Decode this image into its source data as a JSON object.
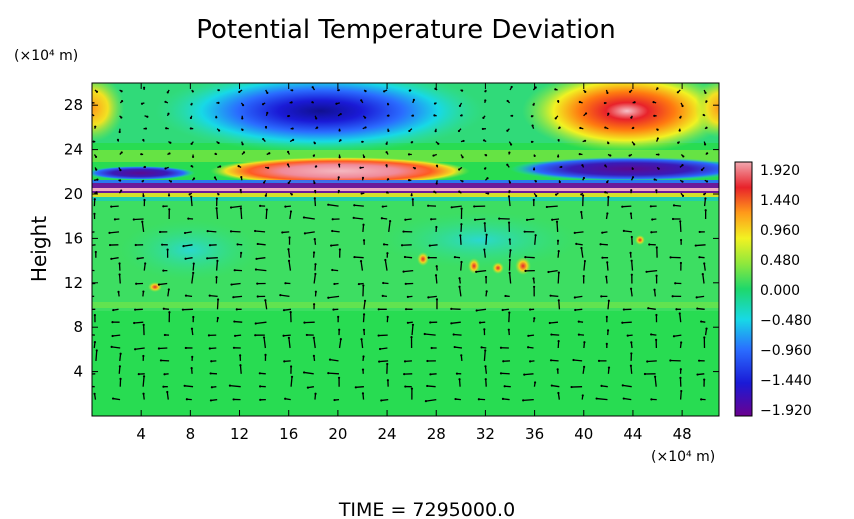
{
  "chart_data": {
    "type": "heatmap",
    "title": "Potential Temperature Deviation",
    "ylabel": "Height",
    "x_unit": "(×10⁴ m)",
    "y_unit": "(×10⁴ m)",
    "xlim": [
      0,
      51
    ],
    "ylim": [
      0,
      30
    ],
    "x_ticks": [
      4,
      8,
      12,
      16,
      20,
      24,
      28,
      32,
      36,
      40,
      44,
      48
    ],
    "y_ticks": [
      4,
      8,
      12,
      16,
      20,
      24,
      28
    ],
    "colorbar": {
      "min": -1.92,
      "max": 1.92,
      "ticks": [
        "1.920",
        "1.440",
        "0.960",
        "0.480",
        "0.000",
        "−0.480",
        "−0.960",
        "−1.440",
        "−1.920"
      ]
    },
    "features": [
      {
        "kind": "negative-anomaly",
        "x": 18.5,
        "y": 27.5,
        "value": -1.9
      },
      {
        "kind": "positive-anomaly",
        "x": 43,
        "y": 27.5,
        "value": 1.9
      },
      {
        "kind": "positive-band",
        "x": 20,
        "y": 22.3,
        "value": 1.8
      },
      {
        "kind": "negative-band",
        "x": 45,
        "y": 22.3,
        "value": -1.7
      },
      {
        "kind": "layer",
        "y": 20.6,
        "value": -1.9
      },
      {
        "kind": "layer",
        "y": 20.2,
        "value": 1.6
      }
    ],
    "overlay": "velocity vectors",
    "grid": false
  },
  "footer": {
    "time_label": "TIME = 7295000.0"
  }
}
